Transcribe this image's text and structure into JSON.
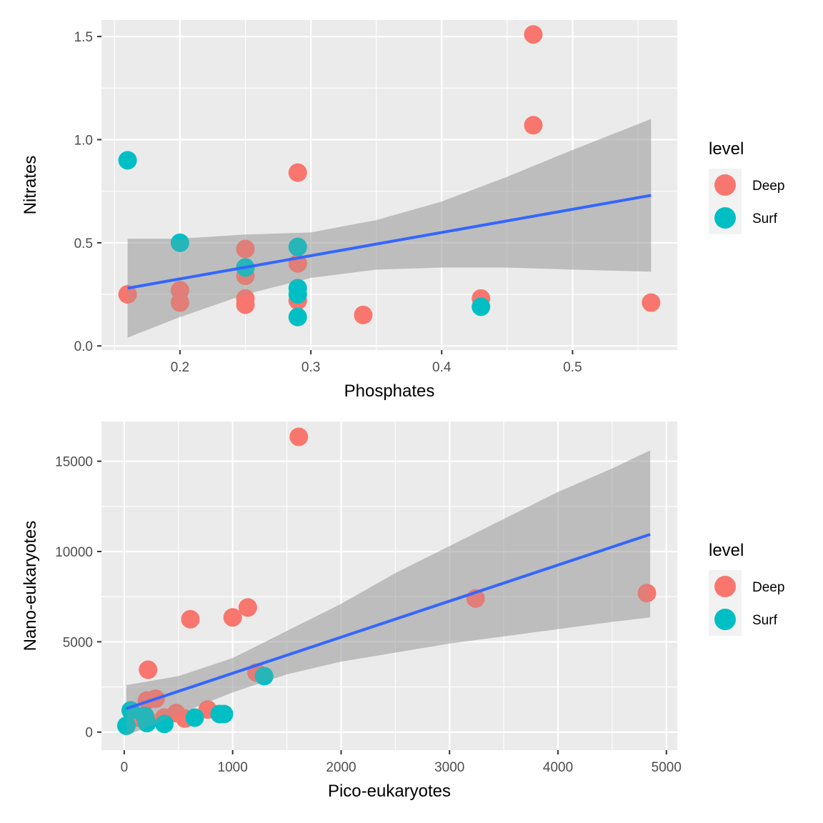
{
  "colors": {
    "panel_bg": "#ebebeb",
    "grid_major": "#ffffff",
    "grid_minor": "#f5f5f5",
    "tick": "#333333",
    "deep": "#f8766d",
    "surf": "#00bfc4",
    "fit_line": "#3366ff",
    "ci_band": "#999999",
    "legend_key_bg": "#f2f2f2"
  },
  "chart_data": [
    {
      "type": "scatter",
      "title": "",
      "xlabel": "Phosphates",
      "ylabel": "Nitrates",
      "xlim": [
        0.14,
        0.58
      ],
      "ylim": [
        -0.02,
        1.58
      ],
      "x_ticks": [
        0.2,
        0.3,
        0.4,
        0.5
      ],
      "x_tick_labels": [
        "0.2",
        "0.3",
        "0.4",
        "0.5"
      ],
      "y_ticks": [
        0.0,
        0.5,
        1.0,
        1.5
      ],
      "y_tick_labels": [
        "0.0",
        "0.5",
        "1.0",
        "1.5"
      ],
      "grid": true,
      "legend": {
        "title": "level",
        "placement": "right",
        "entries": [
          "Deep",
          "Surf"
        ]
      },
      "series": [
        {
          "name": "Deep",
          "points": [
            [
              0.16,
              0.25
            ],
            [
              0.2,
              0.27
            ],
            [
              0.2,
              0.21
            ],
            [
              0.25,
              0.47
            ],
            [
              0.25,
              0.34
            ],
            [
              0.25,
              0.23
            ],
            [
              0.25,
              0.2
            ],
            [
              0.29,
              0.84
            ],
            [
              0.29,
              0.4
            ],
            [
              0.29,
              0.22
            ],
            [
              0.34,
              0.15
            ],
            [
              0.43,
              0.23
            ],
            [
              0.47,
              1.51
            ],
            [
              0.47,
              1.07
            ],
            [
              0.56,
              0.21
            ]
          ]
        },
        {
          "name": "Surf",
          "points": [
            [
              0.16,
              0.9
            ],
            [
              0.2,
              0.5
            ],
            [
              0.25,
              0.38
            ],
            [
              0.29,
              0.48
            ],
            [
              0.29,
              0.28
            ],
            [
              0.29,
              0.25
            ],
            [
              0.29,
              0.14
            ],
            [
              0.43,
              0.19
            ]
          ]
        }
      ],
      "fit": {
        "method": "linear",
        "x": [
          0.16,
          0.56
        ],
        "y": [
          0.28,
          0.73
        ],
        "ci_x": [
          0.16,
          0.2,
          0.25,
          0.3,
          0.35,
          0.4,
          0.45,
          0.5,
          0.56
        ],
        "ci_lower": [
          0.04,
          0.14,
          0.25,
          0.33,
          0.37,
          0.38,
          0.38,
          0.37,
          0.36
        ],
        "ci_upper": [
          0.52,
          0.52,
          0.54,
          0.55,
          0.61,
          0.7,
          0.82,
          0.95,
          1.1
        ]
      }
    },
    {
      "type": "scatter",
      "title": "",
      "xlabel": "Pico-eukaryotes",
      "ylabel": "Nano-eukaryotes",
      "xlim": [
        -210,
        5100
      ],
      "ylim": [
        -1000,
        17200
      ],
      "x_ticks": [
        0,
        1000,
        2000,
        3000,
        4000,
        5000
      ],
      "x_tick_labels": [
        "0",
        "1000",
        "2000",
        "3000",
        "4000",
        "5000"
      ],
      "y_ticks": [
        0,
        5000,
        10000,
        15000
      ],
      "y_tick_labels": [
        "0",
        "5000",
        "10000",
        "15000"
      ],
      "grid": true,
      "legend": {
        "title": "level",
        "placement": "right",
        "entries": [
          "Deep",
          "Surf"
        ]
      },
      "series": [
        {
          "name": "Deep",
          "points": [
            [
              1610,
              16350
            ],
            [
              610,
              6250
            ],
            [
              1000,
              6350
            ],
            [
              1140,
              6900
            ],
            [
              220,
              3450
            ],
            [
              1220,
              3300
            ],
            [
              3240,
              7400
            ],
            [
              4820,
              7700
            ],
            [
              210,
              1750
            ],
            [
              290,
              1850
            ],
            [
              120,
              800
            ],
            [
              370,
              800
            ],
            [
              480,
              1050
            ],
            [
              560,
              750
            ],
            [
              770,
              1250
            ],
            [
              210,
              700
            ]
          ]
        },
        {
          "name": "Surf",
          "points": [
            [
              1290,
              3100
            ],
            [
              60,
              1200
            ],
            [
              20,
              350
            ],
            [
              190,
              900
            ],
            [
              210,
              500
            ],
            [
              370,
              450
            ],
            [
              650,
              800
            ],
            [
              880,
              1000
            ],
            [
              920,
              1000
            ]
          ]
        }
      ],
      "fit": {
        "method": "linear",
        "x": [
          20,
          4850
        ],
        "y": [
          1300,
          10950
        ],
        "ci_x": [
          20,
          500,
          1000,
          1500,
          2000,
          2500,
          3000,
          3500,
          4000,
          4500,
          4850
        ],
        "ci_lower": [
          -200,
          1000,
          2200,
          3200,
          3900,
          4400,
          4900,
          5300,
          5700,
          6100,
          6350
        ],
        "ci_upper": [
          2600,
          3100,
          4100,
          5600,
          7100,
          8800,
          10300,
          11800,
          13300,
          14600,
          15600
        ]
      }
    }
  ]
}
